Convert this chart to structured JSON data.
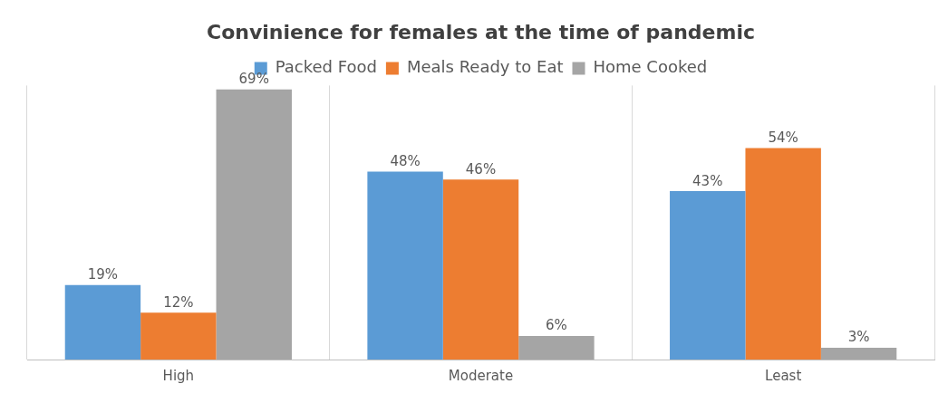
{
  "chart_data": {
    "type": "bar",
    "title": "Convinience for females at the time of pandemic",
    "categories": [
      "High",
      "Moderate",
      "Least"
    ],
    "series": [
      {
        "name": "Packed Food",
        "color": "#5b9bd5",
        "values": [
          19,
          48,
          43
        ],
        "value_labels": [
          "19%",
          "48%",
          "43%"
        ]
      },
      {
        "name": "Meals Ready to Eat",
        "color": "#ed7d31",
        "values": [
          12,
          46,
          54
        ],
        "value_labels": [
          "12%",
          "46%",
          "54%"
        ]
      },
      {
        "name": "Home Cooked",
        "color": "#a5a5a5",
        "values": [
          69,
          6,
          3
        ],
        "value_labels": [
          "69%",
          "6%",
          "3%"
        ]
      }
    ],
    "grid": "x",
    "legend": "top",
    "tick_labels": "x"
  }
}
